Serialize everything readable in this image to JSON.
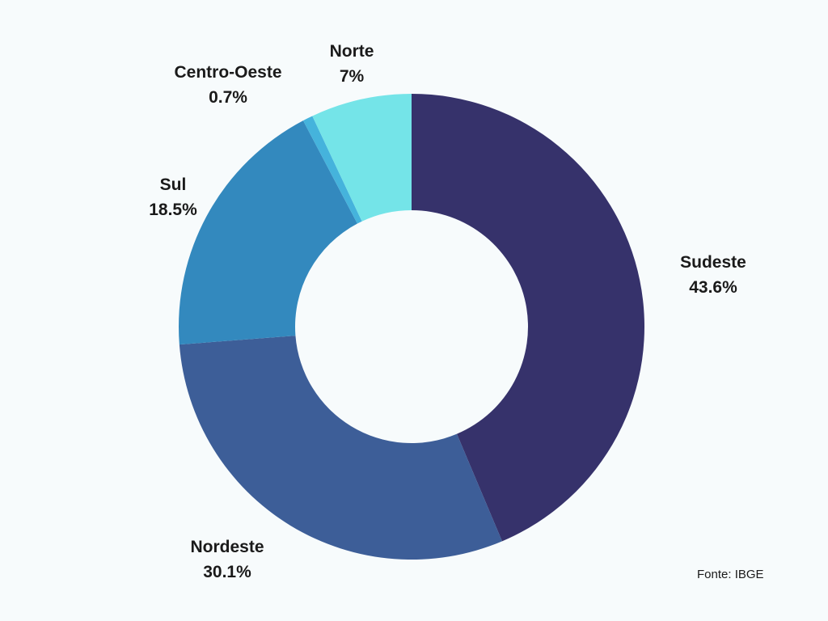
{
  "chart_data": {
    "type": "pie",
    "variant": "donut",
    "categories": [
      "Sudeste",
      "Nordeste",
      "Sul",
      "Centro-Oeste",
      "Norte"
    ],
    "values": [
      43.6,
      30.1,
      18.5,
      0.7,
      7
    ],
    "value_labels": [
      "43.6%",
      "30.1%",
      "18.5%",
      "0.7%",
      "7%"
    ],
    "colors": [
      "#36326b",
      "#3d5e98",
      "#3389be",
      "#45b3dc",
      "#74e4e8"
    ],
    "title": "",
    "legend": "none"
  },
  "source": "Fonte: IBGE"
}
